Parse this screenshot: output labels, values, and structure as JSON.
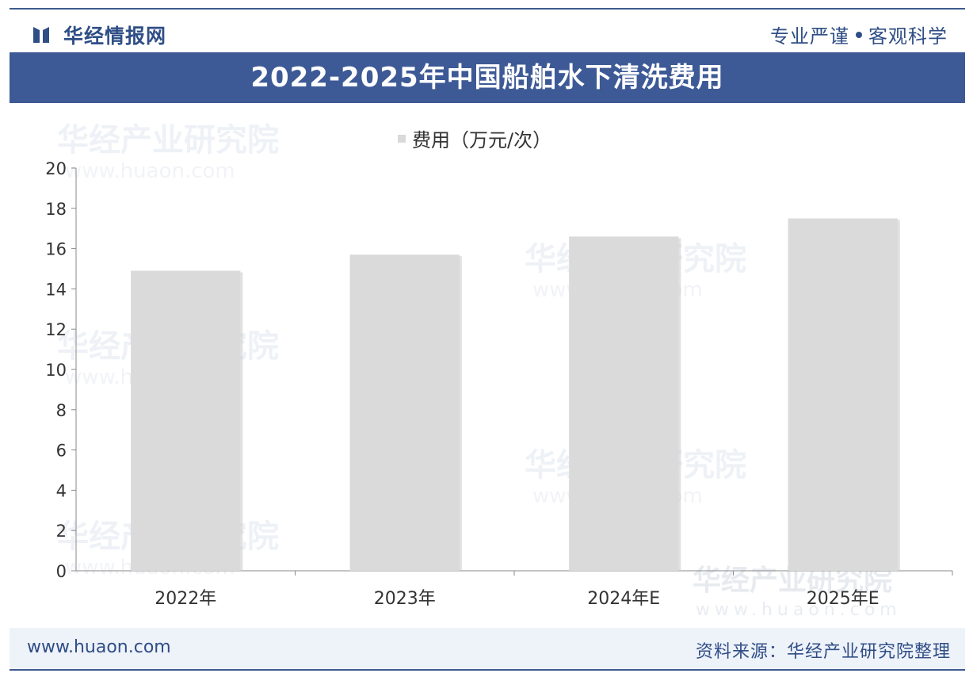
{
  "header": {
    "brand_name": "华经情报网",
    "slogan_left": "专业严谨",
    "slogan_right": "客观科学",
    "brand_color": "#2f4e86"
  },
  "title": "2022-2025年中国船舶水下清洗费用",
  "chart_data": {
    "type": "bar",
    "categories": [
      "2022年",
      "2023年",
      "2024年E",
      "2025年E"
    ],
    "series": [
      {
        "name": "费用（万元/次）",
        "values": [
          14.9,
          15.7,
          16.6,
          17.5
        ],
        "color": "#dadada"
      }
    ],
    "yticks": [
      "0",
      "2",
      "4",
      "6",
      "8",
      "10",
      "12",
      "14",
      "16",
      "18",
      "20"
    ],
    "ylim": [
      0,
      20
    ],
    "grid": false,
    "legend": "top-center"
  },
  "watermark": {
    "name": "华经产业研究院",
    "url": "www.huaon.com"
  },
  "footer": {
    "website": "www.huaon.com",
    "source": "资料来源：华经产业研究院整理"
  }
}
